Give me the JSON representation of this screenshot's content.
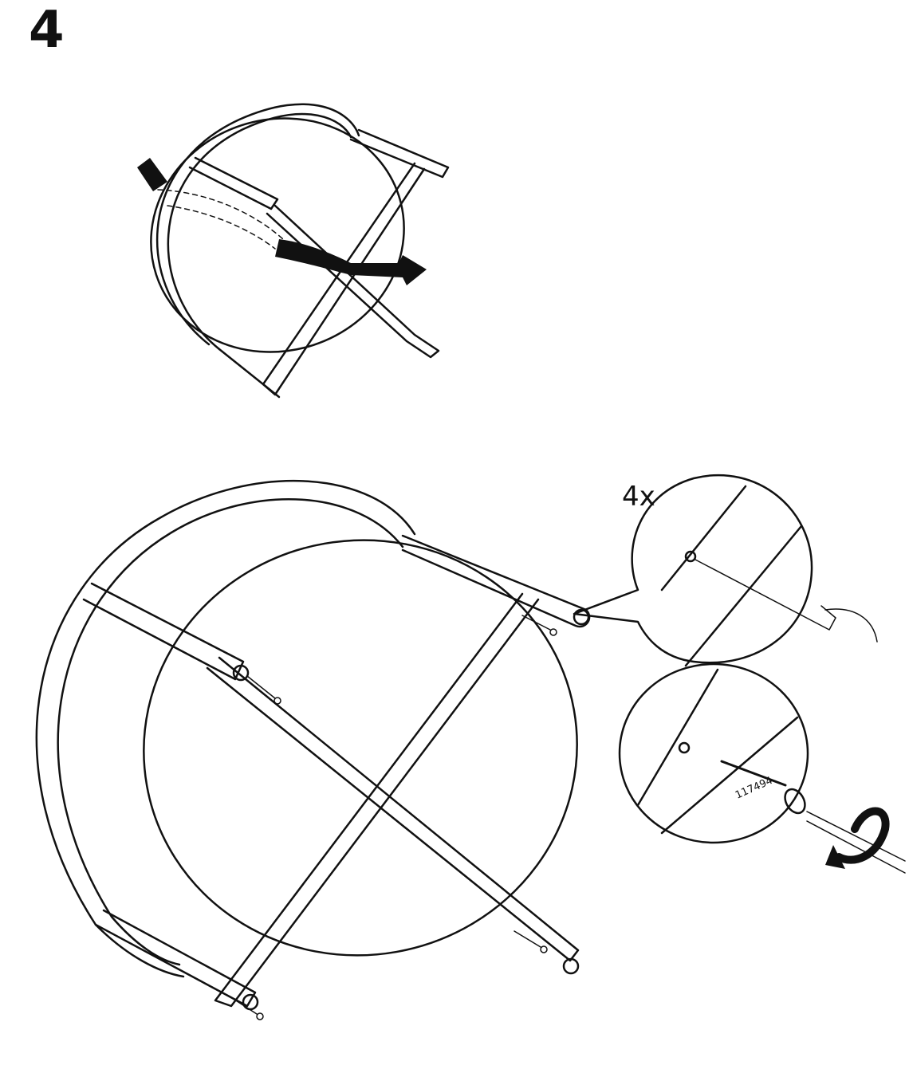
{
  "step": {
    "number": "4"
  },
  "detail": {
    "quantity": "4x",
    "part_number": "117494"
  },
  "colors": {
    "ink": "#111111",
    "paper": "#ffffff"
  },
  "icons": [
    "turn-over-arrow-icon",
    "screw-icon",
    "screwdriver-icon",
    "rotate-clockwise-icon",
    "awl-icon"
  ]
}
